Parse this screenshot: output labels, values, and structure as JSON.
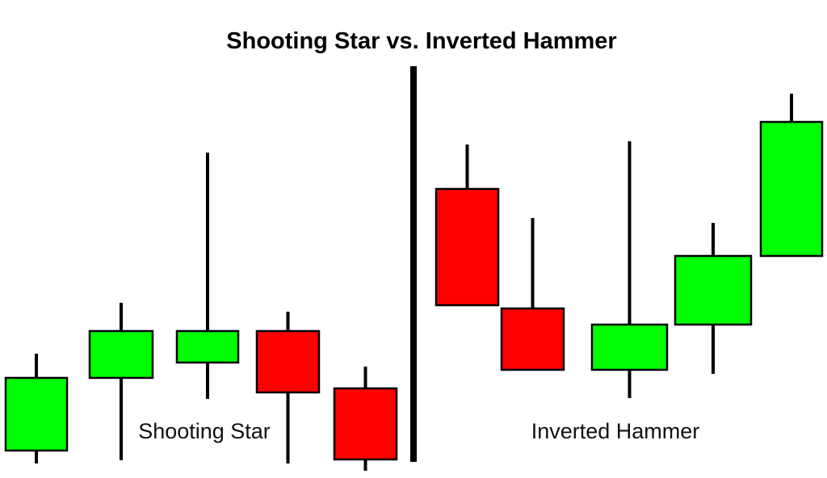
{
  "title": "Shooting Star vs. Inverted Hammer",
  "colors": {
    "bullish": "#00ff00",
    "bearish": "#ff0000",
    "outline": "#000000"
  },
  "sections": [
    {
      "label": "Shooting Star",
      "candles": [
        {
          "direction": "up",
          "open": 34,
          "close": 124,
          "high": 154,
          "low": 18
        },
        {
          "direction": "up",
          "open": 124,
          "close": 182,
          "high": 217,
          "low": 22
        },
        {
          "direction": "up",
          "open": 143,
          "close": 182,
          "high": 403,
          "low": 98
        },
        {
          "direction": "down",
          "open": 182,
          "close": 106,
          "high": 206,
          "low": 18
        },
        {
          "direction": "down",
          "open": 111,
          "close": 23,
          "high": 138,
          "low": 9
        }
      ]
    },
    {
      "label": "Inverted Hammer",
      "candles": [
        {
          "direction": "down",
          "open": 358,
          "close": 214,
          "high": 413,
          "low": 214
        },
        {
          "direction": "down",
          "open": 210,
          "close": 134,
          "high": 322,
          "low": 134
        },
        {
          "direction": "up",
          "open": 134,
          "close": 190,
          "high": 417,
          "low": 99
        },
        {
          "direction": "up",
          "open": 190,
          "close": 275,
          "high": 316,
          "low": 129
        },
        {
          "direction": "up",
          "open": 275,
          "close": 441,
          "high": 476,
          "low": 275
        }
      ]
    }
  ]
}
